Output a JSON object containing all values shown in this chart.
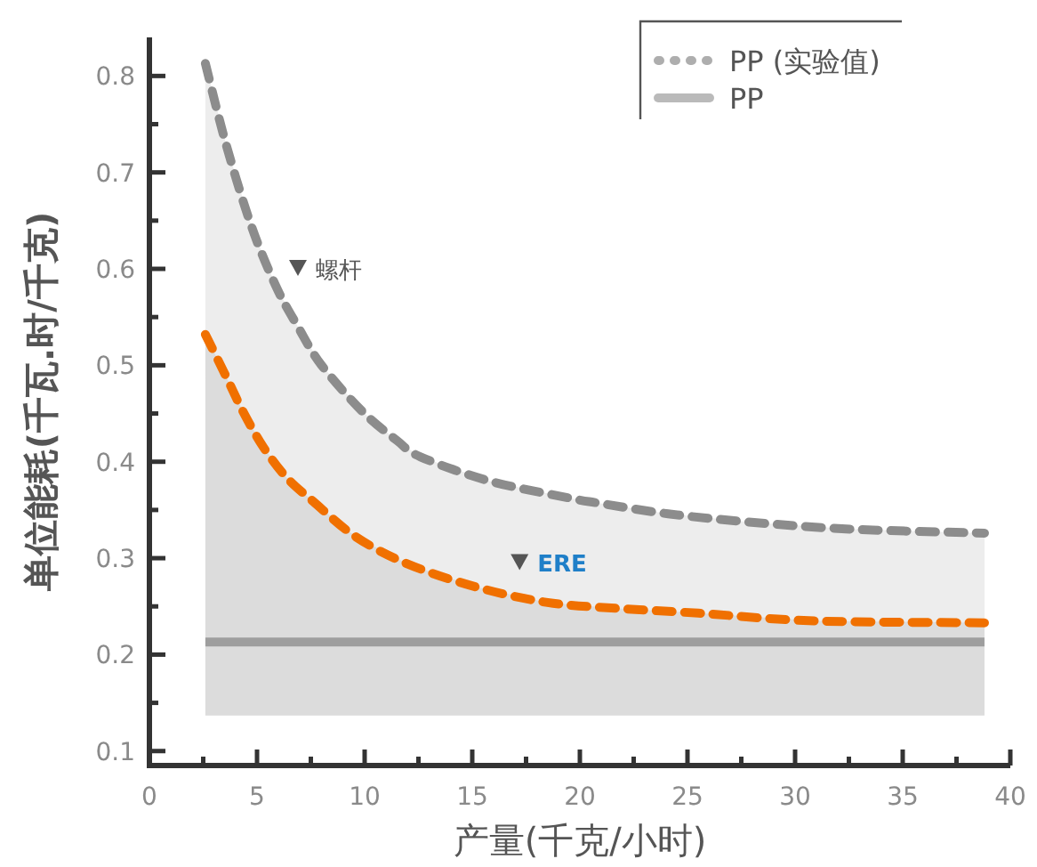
{
  "chart_data": {
    "type": "line",
    "xlabel": "产量(千克/小时)",
    "ylabel": "单位能耗(千瓦.时/千克)",
    "xlim": [
      0,
      40
    ],
    "ylim": [
      0.085,
      0.84
    ],
    "xticks": [
      0,
      {
        "value": 2.5,
        "label": null
      },
      5,
      {
        "value": 7.5,
        "label": null
      },
      10,
      {
        "value": 12.5,
        "label": null
      },
      15,
      {
        "value": 17.5,
        "label": null
      },
      20,
      {
        "value": 22.5,
        "label": null
      },
      25,
      {
        "value": 27.5,
        "label": null
      },
      30,
      {
        "value": 32.5,
        "label": null
      },
      35,
      {
        "value": 37.5,
        "label": null
      },
      40
    ],
    "yticks": [
      0.1,
      {
        "value": 0.15,
        "label": null
      },
      0.2,
      {
        "value": 0.25,
        "label": null
      },
      0.3,
      {
        "value": 0.35,
        "label": null
      },
      0.4,
      {
        "value": 0.45,
        "label": null
      },
      0.5,
      {
        "value": 0.55,
        "label": null
      },
      0.6,
      {
        "value": 0.65,
        "label": null
      },
      0.7,
      {
        "value": 0.75,
        "label": null
      },
      0.8
    ],
    "legend": "top right",
    "grid": false,
    "series": [
      {
        "name": "PP (实验值)",
        "color": "#8c8c8c",
        "line_style": "dashed",
        "x": [
          2.6,
          3.55,
          4.76,
          5.9,
          6.9,
          8.0,
          9.9,
          11.5,
          12.6,
          15.8,
          19.6,
          20.9,
          24.1,
          28.1,
          32.7,
          38.8
        ],
        "values": [
          0.813,
          0.73,
          0.643,
          0.581,
          0.54,
          0.5,
          0.452,
          0.422,
          0.405,
          0.38,
          0.362,
          0.357,
          0.346,
          0.337,
          0.33,
          0.326
        ],
        "lower": [
          0.137,
          0.137,
          0.137,
          0.137,
          0.137,
          0.137,
          0.137,
          0.137,
          0.137,
          0.137,
          0.137,
          0.137,
          0.137,
          0.137,
          0.137,
          0.137
        ],
        "upper": [
          0.813,
          0.73,
          0.643,
          0.581,
          0.54,
          0.5,
          0.452,
          0.422,
          0.405,
          0.38,
          0.362,
          0.357,
          0.346,
          0.337,
          0.33,
          0.326
        ]
      },
      {
        "color": "#f07000",
        "line_style": "dashed",
        "x": [
          2.6,
          3.55,
          4.35,
          5.3,
          6.4,
          7.6,
          9.6,
          12.0,
          15.2,
          18.5,
          21.7,
          25.5,
          30.9,
          38.8
        ],
        "values": [
          0.532,
          0.489,
          0.452,
          0.415,
          0.383,
          0.359,
          0.322,
          0.294,
          0.27,
          0.254,
          0.248,
          0.243,
          0.235,
          0.233
        ],
        "lower": [
          0.137,
          0.137,
          0.137,
          0.137,
          0.137,
          0.137,
          0.137,
          0.137,
          0.137,
          0.137,
          0.137,
          0.137,
          0.137,
          0.137
        ],
        "upper": [
          0.532,
          0.489,
          0.452,
          0.415,
          0.383,
          0.359,
          0.322,
          0.294,
          0.27,
          0.254,
          0.248,
          0.243,
          0.235,
          0.233
        ]
      },
      {
        "name": "PP",
        "color": "#9e9e9e",
        "line_style": "solid",
        "x": [
          2.6,
          38.8
        ],
        "values": [
          0.213,
          0.213
        ]
      }
    ],
    "annotations": [
      {
        "text": "螺杆",
        "x": 6.9,
        "y": 0.6
      },
      {
        "text": "ERE",
        "x": 17.2,
        "y": 0.295
      }
    ]
  }
}
